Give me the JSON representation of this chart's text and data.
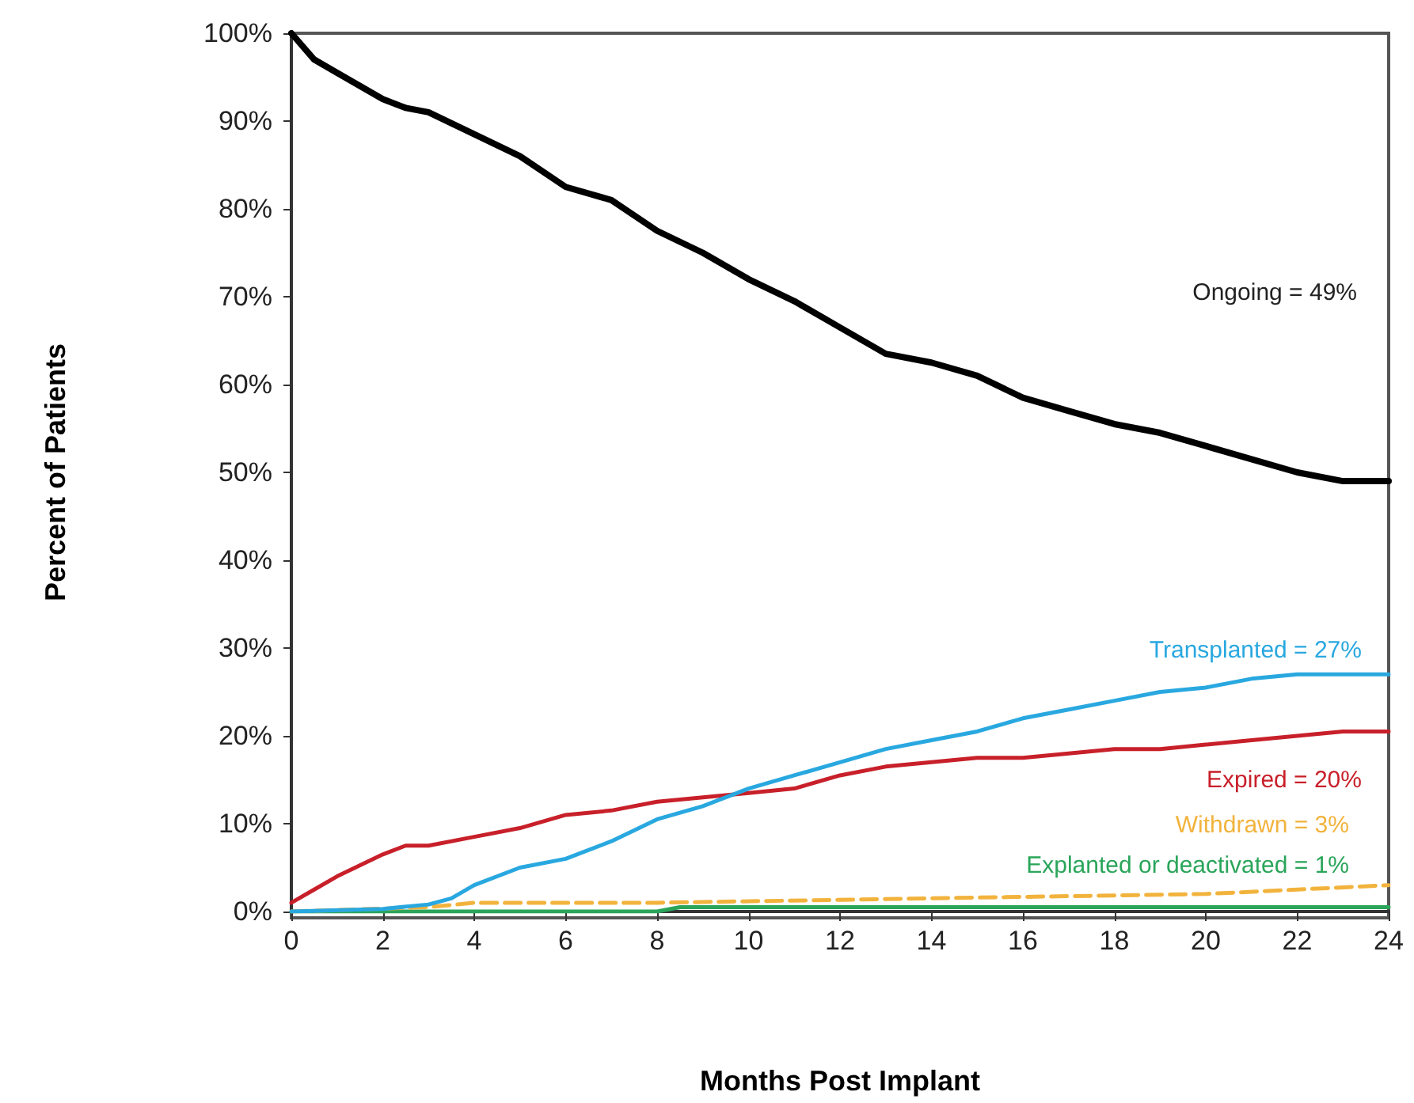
{
  "chart_data": {
    "type": "line",
    "xlabel": "Months Post Implant",
    "ylabel": "Percent of Patients",
    "xlim": [
      0,
      24
    ],
    "xticks": [
      0,
      2,
      4,
      6,
      8,
      10,
      12,
      14,
      16,
      18,
      20,
      22,
      24
    ],
    "ylim": [
      0,
      100
    ],
    "yticks": [
      {
        "value": 0,
        "label": "0%"
      },
      {
        "value": 10,
        "label": "10%"
      },
      {
        "value": 20,
        "label": "20%"
      },
      {
        "value": 30,
        "label": "30%"
      },
      {
        "value": 40,
        "label": "40%"
      },
      {
        "value": 50,
        "label": "50%"
      },
      {
        "value": 60,
        "label": "60%"
      },
      {
        "value": 70,
        "label": "70%"
      },
      {
        "value": 80,
        "label": "80%"
      },
      {
        "value": 90,
        "label": "90%"
      },
      {
        "value": 100,
        "label": "100%"
      }
    ],
    "grid": false,
    "legend": false,
    "marker": "none",
    "series": [
      {
        "name": "Ongoing = 49%",
        "color": "#000000",
        "x": [
          0,
          0.5,
          1,
          2,
          2.5,
          3,
          4,
          5,
          6,
          7,
          8,
          9,
          10,
          11,
          12,
          13,
          14,
          15,
          16,
          17,
          18,
          19,
          20,
          21,
          22,
          23,
          24
        ],
        "values": [
          100,
          97,
          95.5,
          92.5,
          91.5,
          91,
          88.5,
          86,
          82.5,
          81,
          77.5,
          75,
          72,
          69.5,
          66.5,
          63.5,
          62.5,
          61,
          58.5,
          57,
          55.5,
          54.5,
          53,
          51.5,
          50,
          49,
          49
        ]
      },
      {
        "name": "Transplanted = 27%",
        "color": "#29a8e0",
        "x": [
          0,
          2,
          3,
          3.5,
          4,
          5,
          6,
          7,
          8,
          9,
          10,
          11,
          12,
          13,
          14,
          15,
          16,
          17,
          18,
          19,
          20,
          21,
          22,
          24
        ],
        "values": [
          0,
          0.3,
          0.8,
          1.5,
          3,
          5,
          6,
          8,
          10.5,
          12,
          14,
          15.5,
          17,
          18.5,
          19.5,
          20.5,
          22,
          23,
          24,
          25,
          25.5,
          26.5,
          27,
          27
        ]
      },
      {
        "name": "Expired = 20%",
        "color": "#c8202a",
        "x": [
          0,
          0.5,
          1,
          2,
          2.5,
          3,
          4,
          5,
          6,
          7,
          8,
          9,
          10,
          11,
          12,
          13,
          14,
          15,
          16,
          17,
          18,
          19,
          20,
          21,
          22,
          23,
          24
        ],
        "values": [
          1,
          2.5,
          4,
          6.5,
          7.5,
          7.5,
          8.5,
          9.5,
          11,
          11.5,
          12.5,
          13,
          13.5,
          14,
          15.5,
          16.5,
          17,
          17.5,
          17.5,
          18,
          18.5,
          18.5,
          19,
          19.5,
          20,
          20.5,
          20.5
        ]
      },
      {
        "name": "Withdrawn = 3%",
        "color": "#f2b33d",
        "line_style": "dashed",
        "x": [
          0,
          3,
          4,
          8,
          14,
          20,
          22,
          24
        ],
        "values": [
          0,
          0.5,
          1,
          1,
          1.5,
          2,
          2.5,
          3
        ]
      },
      {
        "name": "Explanted or deactivated = 1%",
        "color": "#2aa55a",
        "x": [
          0,
          8,
          8.5,
          24
        ],
        "values": [
          0,
          0,
          0.5,
          0.5
        ]
      }
    ]
  }
}
